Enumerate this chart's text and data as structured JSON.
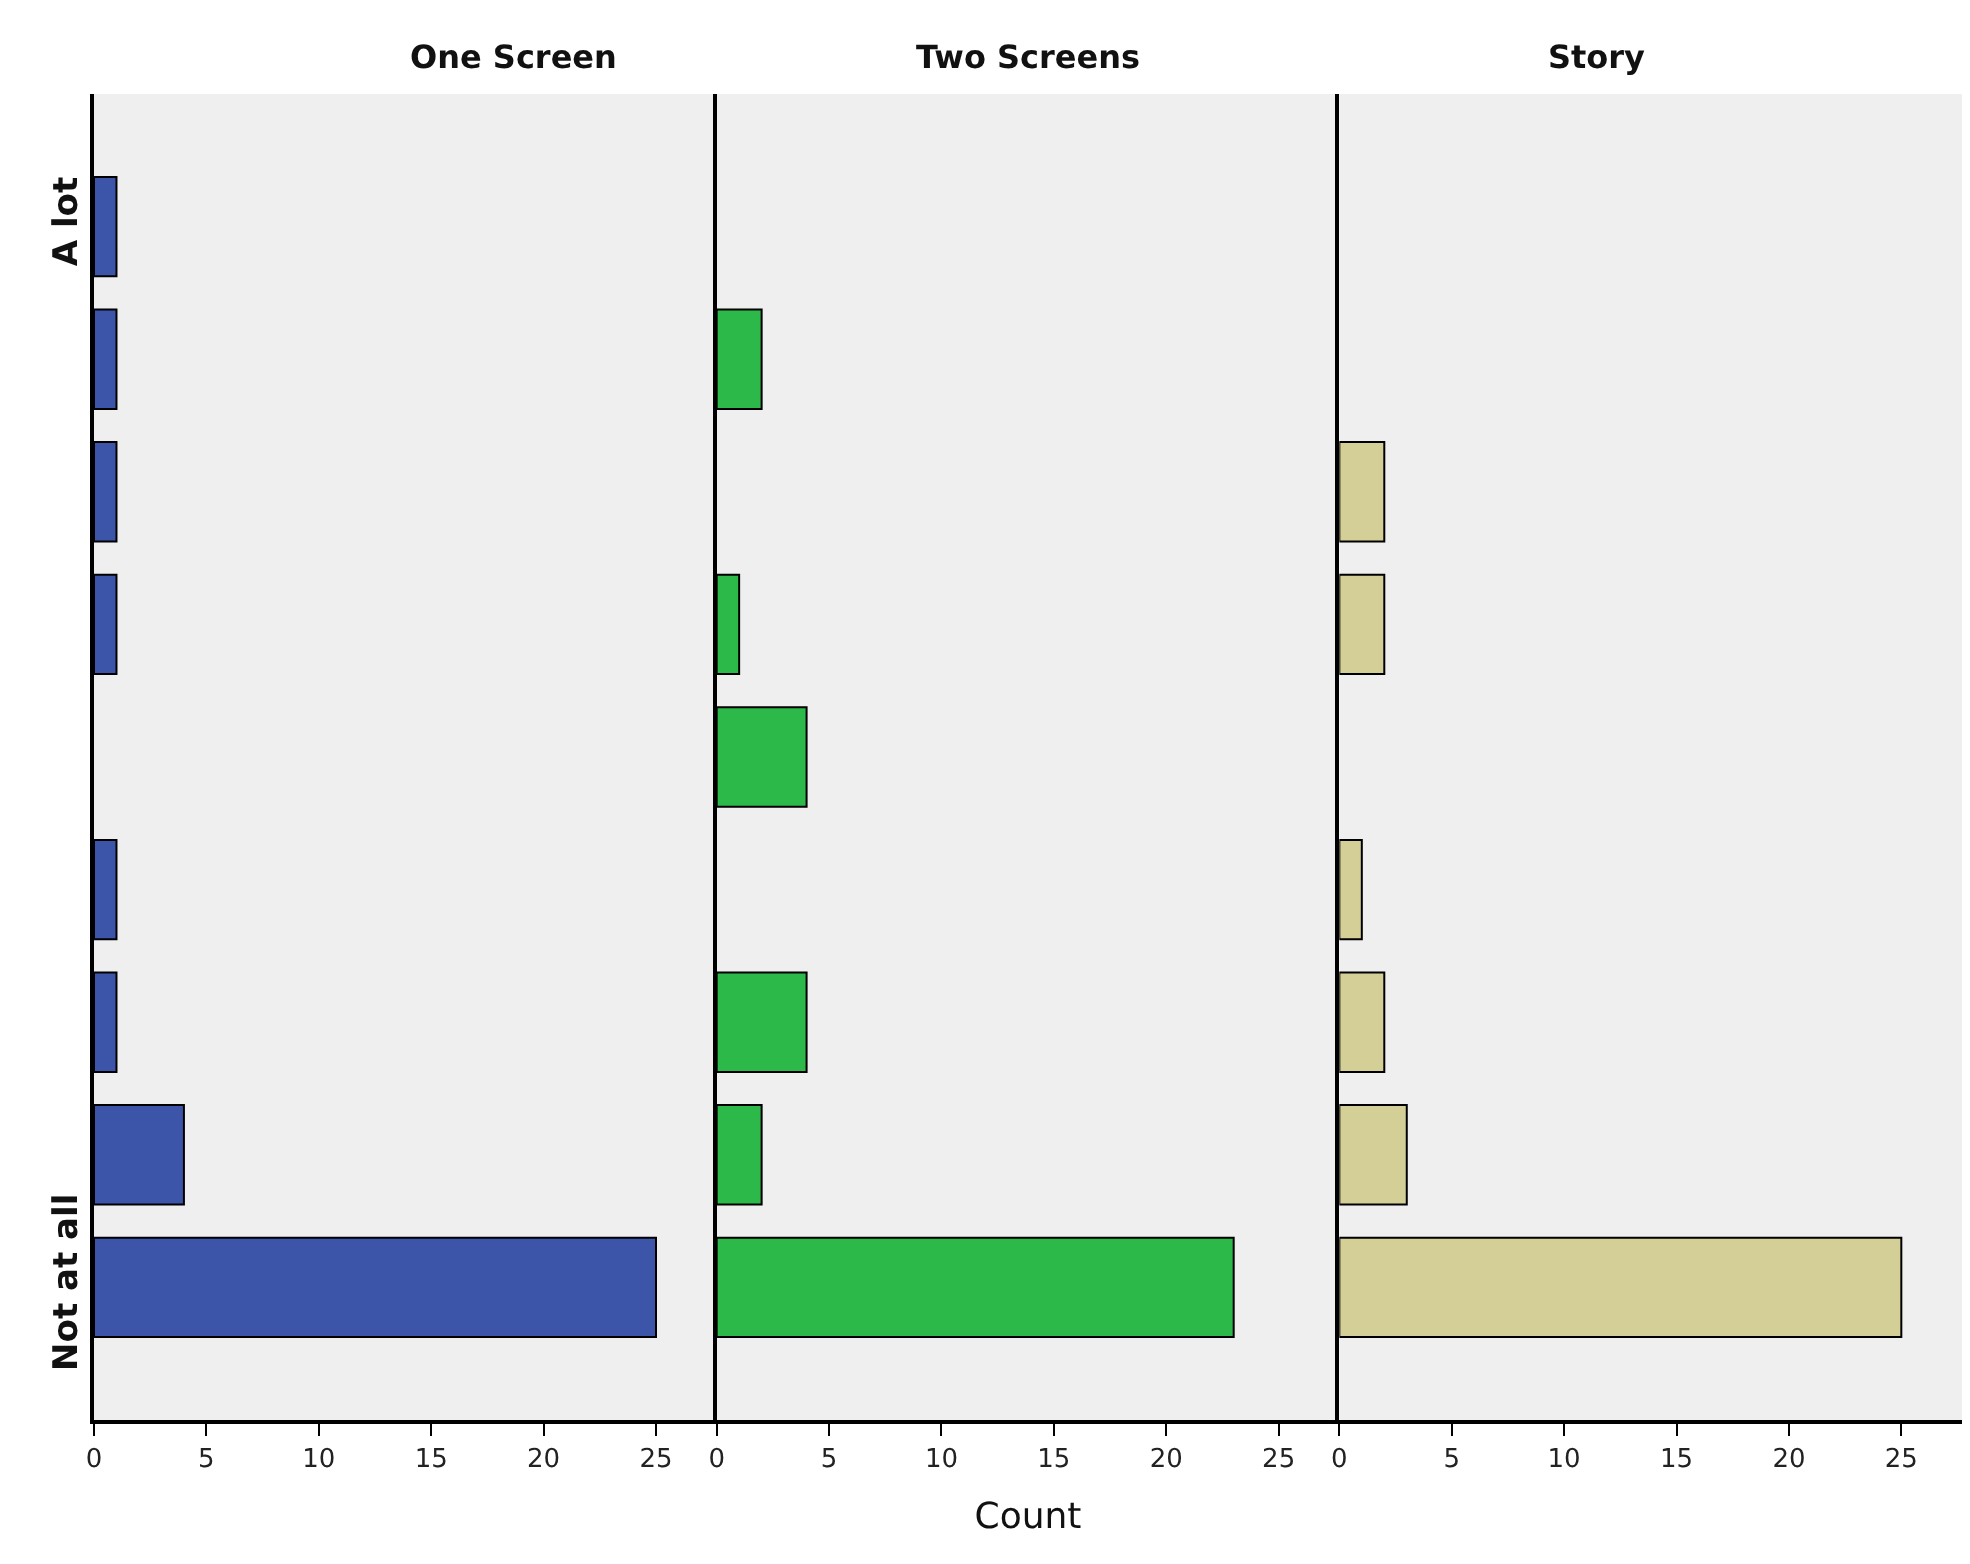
{
  "chart_data": [
    {
      "type": "bar",
      "orientation": "horizontal",
      "title": "One Screen",
      "categories": [
        "A lot",
        null,
        null,
        null,
        null,
        null,
        null,
        null,
        "Not at all"
      ],
      "values": [
        1,
        1,
        1,
        1,
        0,
        1,
        1,
        4,
        25
      ],
      "color": "#3d55a8",
      "xlim": [
        0,
        27.7
      ],
      "xticks": [
        0,
        5,
        10,
        15,
        20,
        25
      ],
      "grid": false
    },
    {
      "type": "bar",
      "orientation": "horizontal",
      "title": "Two Screens",
      "xlabel": "Count",
      "categories": [
        null,
        null,
        null,
        null,
        null,
        null,
        null,
        null,
        null
      ],
      "values": [
        0,
        2,
        0,
        1,
        4,
        0,
        4,
        2,
        23
      ],
      "color": "#2db84a",
      "xlim": [
        0,
        27.7
      ],
      "xticks": [
        0,
        5,
        10,
        15,
        20,
        25
      ],
      "tick_labels": "x",
      "grid": false
    },
    {
      "type": "bar",
      "orientation": "horizontal",
      "title": "Story",
      "categories": [
        null,
        null,
        null,
        null,
        null,
        null,
        null,
        null,
        null
      ],
      "values": [
        0,
        0,
        2,
        2,
        0,
        1,
        2,
        3,
        25
      ],
      "color": "#d4cf96",
      "xlim": [
        0,
        27.7
      ],
      "xticks": [
        0,
        5,
        10,
        15,
        20,
        25
      ],
      "tick_labels": "x",
      "grid": false
    }
  ]
}
